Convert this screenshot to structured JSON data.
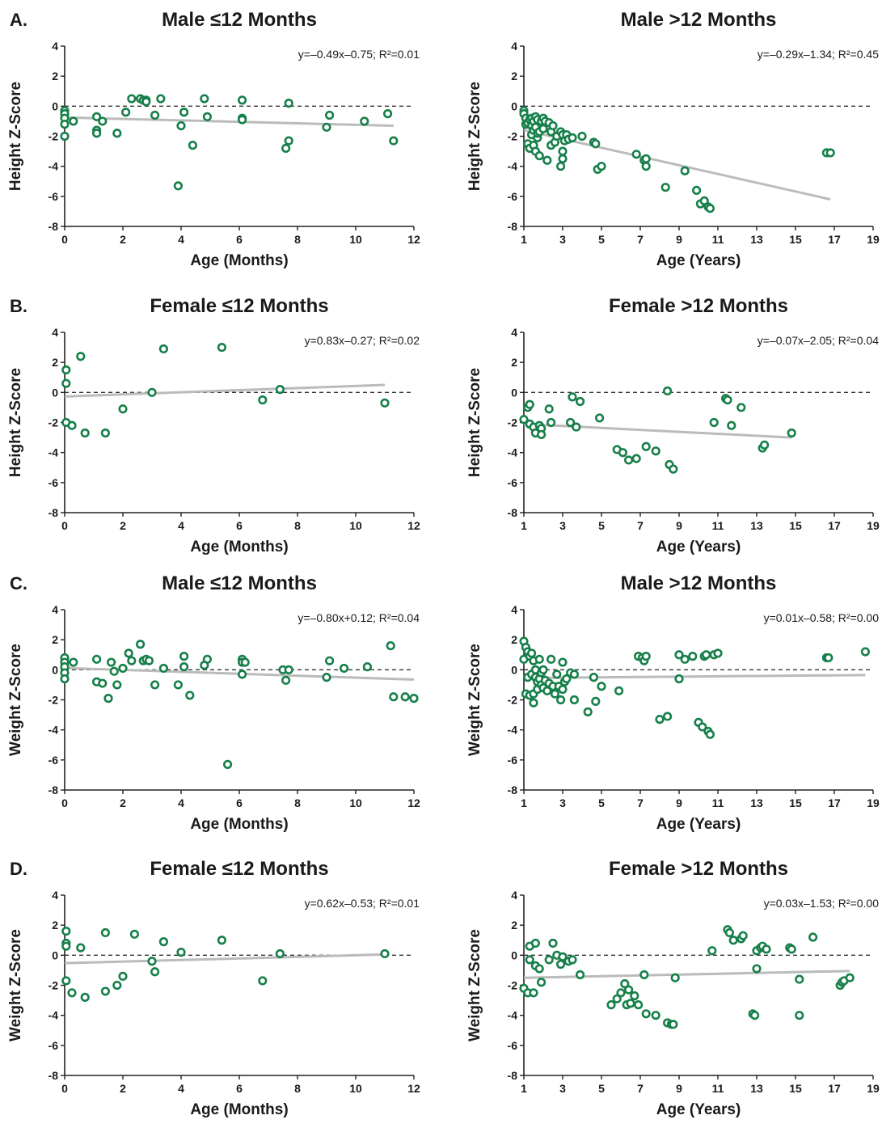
{
  "figure": {
    "rows": [
      {
        "label": "A."
      },
      {
        "label": "B."
      },
      {
        "label": "C."
      },
      {
        "label": "D."
      }
    ]
  },
  "chart_data": [
    {
      "type": "scatter",
      "title": "Male ≤12 Months",
      "equation": "y=–0.49x–0.75; R²=0.01",
      "xlabel": "Age (Months)",
      "ylabel": "Height Z-Score",
      "xlim": [
        0,
        12
      ],
      "ylim": [
        -8,
        4
      ],
      "xticks": [
        0,
        2,
        4,
        6,
        8,
        10,
        12
      ],
      "yticks": [
        4,
        2,
        0,
        -2,
        -4,
        -6,
        -8
      ],
      "reference_line": 0,
      "trend": {
        "x": [
          0,
          11.3
        ],
        "y": [
          -0.75,
          -1.3
        ]
      },
      "x": [
        0,
        0,
        0,
        0,
        0,
        0.3,
        1.1,
        1.1,
        1.1,
        1.3,
        1.8,
        2.1,
        2.3,
        2.6,
        2.7,
        2.8,
        2.8,
        3.1,
        3.3,
        3.9,
        4.0,
        4.1,
        4.4,
        4.8,
        4.9,
        6.1,
        6.1,
        6.1,
        7.6,
        7.7,
        7.7,
        9.0,
        9.1,
        10.3,
        11.1,
        11.3
      ],
      "y": [
        -0.3,
        -0.5,
        -0.8,
        -1.2,
        -2.0,
        -1.0,
        -0.7,
        -1.6,
        -1.8,
        -1.0,
        -1.8,
        -0.4,
        0.5,
        0.5,
        0.4,
        0.4,
        0.3,
        -0.6,
        0.5,
        -5.3,
        -1.3,
        -0.4,
        -2.6,
        0.5,
        -0.7,
        0.4,
        -0.8,
        -0.9,
        -2.8,
        -2.3,
        0.2,
        -1.4,
        -0.6,
        -1.0,
        -0.5,
        -2.3
      ],
      "color": "#17804a",
      "trend_color": "#bbbbbb"
    },
    {
      "type": "scatter",
      "title": "Male >12 Months",
      "equation": "y=–0.29x–1.34; R²=0.45",
      "xlabel": "Age (Years)",
      "ylabel": "Height Z-Score",
      "xlim": [
        1,
        19
      ],
      "ylim": [
        -8,
        4
      ],
      "xticks": [
        1,
        3,
        5,
        7,
        9,
        11,
        13,
        15,
        17,
        19
      ],
      "yticks": [
        4,
        2,
        0,
        -2,
        -4,
        -6,
        -8
      ],
      "reference_line": 0,
      "trend": {
        "x": [
          1,
          16.8
        ],
        "y": [
          -1.6,
          -6.2
        ]
      },
      "x": [
        1.0,
        1.0,
        1.1,
        1.1,
        1.2,
        1.2,
        1.3,
        1.3,
        1.4,
        1.4,
        1.4,
        1.5,
        1.5,
        1.5,
        1.6,
        1.6,
        1.6,
        1.7,
        1.7,
        1.7,
        1.8,
        1.8,
        1.9,
        2.0,
        2.0,
        2.1,
        2.2,
        2.3,
        2.4,
        2.4,
        2.5,
        2.6,
        2.7,
        2.9,
        2.9,
        3.0,
        3.0,
        3.0,
        3.1,
        3.2,
        3.3,
        3.5,
        4.0,
        4.6,
        4.7,
        4.8,
        5.0,
        6.8,
        7.2,
        7.3,
        7.3,
        8.3,
        9.3,
        9.9,
        10.1,
        10.3,
        10.5,
        10.6,
        16.6,
        16.8
      ],
      "y": [
        -0.3,
        -0.5,
        -0.8,
        -1.2,
        -2.5,
        -1.1,
        -0.9,
        -2.8,
        -1.9,
        -1.3,
        -0.8,
        -2.6,
        -1.6,
        -1.0,
        -0.7,
        -1.4,
        -3.0,
        -2.1,
        -0.9,
        -1.8,
        -1.7,
        -3.3,
        -1.0,
        -0.8,
        -1.5,
        -1.0,
        -3.6,
        -1.1,
        -1.7,
        -2.6,
        -1.3,
        -2.4,
        -2.0,
        -4.0,
        -1.7,
        -3.0,
        -1.9,
        -3.5,
        -2.3,
        -1.9,
        -2.2,
        -2.1,
        -2.0,
        -2.4,
        -2.5,
        -4.2,
        -4.0,
        -3.2,
        -3.6,
        -4.0,
        -3.5,
        -5.4,
        -4.3,
        -5.6,
        -6.5,
        -6.3,
        -6.7,
        -6.8,
        -3.1,
        -3.1
      ],
      "color": "#17804a",
      "trend_color": "#bbbbbb"
    },
    {
      "type": "scatter",
      "title": "Female ≤12 Months",
      "equation": "y=0.83x–0.27; R²=0.02",
      "xlabel": "Age (Months)",
      "ylabel": "Height Z-Score",
      "xlim": [
        0,
        12
      ],
      "ylim": [
        -8,
        4
      ],
      "xticks": [
        0,
        2,
        4,
        6,
        8,
        10,
        12
      ],
      "yticks": [
        4,
        2,
        0,
        -2,
        -4,
        -6,
        -8
      ],
      "reference_line": 0,
      "trend": {
        "x": [
          0,
          11
        ],
        "y": [
          -0.27,
          0.5
        ]
      },
      "x": [
        0.05,
        0.05,
        0.05,
        0.25,
        0.55,
        0.7,
        1.4,
        2.0,
        3.0,
        3.4,
        5.4,
        6.8,
        7.4,
        11.0
      ],
      "y": [
        1.5,
        0.6,
        -2.0,
        -2.2,
        2.4,
        -2.7,
        -2.7,
        -1.1,
        0.0,
        2.9,
        3.0,
        -0.5,
        0.2,
        -0.7
      ],
      "color": "#17804a",
      "trend_color": "#bbbbbb"
    },
    {
      "type": "scatter",
      "title": "Female >12 Months",
      "equation": "y=–0.07x–2.05; R²=0.04",
      "xlabel": "Age (Years)",
      "ylabel": "Height Z-Score",
      "xlim": [
        1,
        19
      ],
      "ylim": [
        -8,
        4
      ],
      "xticks": [
        1,
        3,
        5,
        7,
        9,
        11,
        13,
        15,
        17,
        19
      ],
      "yticks": [
        4,
        2,
        0,
        -2,
        -4,
        -6,
        -8
      ],
      "reference_line": 0,
      "trend": {
        "x": [
          1,
          14.8
        ],
        "y": [
          -2.1,
          -3.0
        ]
      },
      "x": [
        1.0,
        1.2,
        1.3,
        1.3,
        1.5,
        1.6,
        1.8,
        1.9,
        1.9,
        2.3,
        2.4,
        3.4,
        3.5,
        3.7,
        3.9,
        4.9,
        5.8,
        6.1,
        6.4,
        6.8,
        7.3,
        7.8,
        8.4,
        8.5,
        8.7,
        10.8,
        11.4,
        11.5,
        11.7,
        12.2,
        13.3,
        13.4,
        14.8
      ],
      "y": [
        -1.8,
        -1.0,
        -0.8,
        -2.1,
        -2.3,
        -2.7,
        -2.2,
        -2.4,
        -2.8,
        -1.1,
        -2.0,
        -2.0,
        -0.3,
        -2.3,
        -0.6,
        -1.7,
        -3.8,
        -4.0,
        -4.5,
        -4.4,
        -3.6,
        -3.9,
        0.1,
        -4.8,
        -5.1,
        -2.0,
        -0.4,
        -0.5,
        -2.2,
        -1.0,
        -3.7,
        -3.5,
        -2.7
      ],
      "color": "#17804a",
      "trend_color": "#bbbbbb"
    },
    {
      "type": "scatter",
      "title": "Male ≤12 Months",
      "equation": "y=–0.80x+0.12; R²=0.04",
      "xlabel": "Age (Months)",
      "ylabel": "Weight Z-Score",
      "xlim": [
        0,
        12
      ],
      "ylim": [
        -8,
        4
      ],
      "xticks": [
        0,
        2,
        4,
        6,
        8,
        10,
        12
      ],
      "yticks": [
        4,
        2,
        0,
        -2,
        -4,
        -6,
        -8
      ],
      "reference_line": 0,
      "trend": {
        "x": [
          0,
          12
        ],
        "y": [
          0.12,
          -0.65
        ]
      },
      "x": [
        0,
        0,
        0,
        0,
        0,
        0.3,
        1.1,
        1.1,
        1.3,
        1.5,
        1.6,
        1.7,
        1.8,
        2.0,
        2.2,
        2.3,
        2.6,
        2.7,
        2.8,
        2.9,
        3.1,
        3.4,
        3.9,
        4.1,
        4.1,
        4.3,
        4.9,
        4.8,
        5.6,
        6.1,
        6.1,
        6.1,
        6.2,
        7.5,
        7.6,
        7.7,
        9.0,
        9.1,
        9.6,
        10.4,
        11.2,
        11.3,
        11.7,
        12.0
      ],
      "y": [
        0.8,
        0.5,
        0.2,
        -0.2,
        -0.6,
        0.5,
        0.7,
        -0.8,
        -0.9,
        -1.9,
        0.5,
        -0.1,
        -1.0,
        0.1,
        1.1,
        0.6,
        1.7,
        0.6,
        0.7,
        0.6,
        -1.0,
        0.1,
        -1.0,
        0.2,
        0.9,
        -1.7,
        0.7,
        0.3,
        -6.3,
        0.7,
        0.5,
        -0.3,
        0.5,
        0.0,
        -0.7,
        0.0,
        -0.5,
        0.6,
        0.1,
        0.2,
        1.6,
        -1.8,
        -1.8,
        -1.9
      ],
      "color": "#17804a",
      "trend_color": "#bbbbbb"
    },
    {
      "type": "scatter",
      "title": "Male >12 Months",
      "equation": "y=0.01x–0.58; R²=0.00",
      "xlabel": "Age (Years)",
      "ylabel": "Weight Z-Score",
      "xlim": [
        1,
        19
      ],
      "ylim": [
        -8,
        4
      ],
      "xticks": [
        1,
        3,
        5,
        7,
        9,
        11,
        13,
        15,
        17,
        19
      ],
      "yticks": [
        4,
        2,
        0,
        -2,
        -4,
        -6,
        -8
      ],
      "reference_line": 0,
      "trend": {
        "x": [
          1,
          18.6
        ],
        "y": [
          -0.55,
          -0.35
        ]
      },
      "x": [
        1.0,
        1.0,
        1.1,
        1.1,
        1.2,
        1.2,
        1.3,
        1.3,
        1.4,
        1.4,
        1.5,
        1.5,
        1.5,
        1.6,
        1.6,
        1.7,
        1.7,
        1.8,
        1.8,
        1.9,
        1.9,
        2.0,
        2.0,
        2.1,
        2.2,
        2.3,
        2.4,
        2.5,
        2.6,
        2.7,
        2.8,
        2.9,
        3.0,
        3.0,
        3.1,
        3.2,
        3.4,
        3.6,
        3.6,
        4.3,
        4.6,
        4.7,
        5.0,
        5.9,
        6.9,
        7.1,
        7.2,
        7.3,
        8.0,
        8.4,
        9.0,
        9.0,
        9.3,
        9.7,
        10.0,
        10.2,
        10.3,
        10.4,
        10.5,
        10.6,
        10.8,
        11.0,
        16.6,
        16.7,
        18.6
      ],
      "y": [
        1.9,
        0.7,
        1.5,
        -1.6,
        1.2,
        -0.5,
        0.9,
        -1.7,
        1.1,
        -0.3,
        0.6,
        -2.2,
        -1.6,
        -0.5,
        0.0,
        -0.8,
        -1.3,
        0.7,
        -0.6,
        -0.2,
        -1.0,
        0.0,
        -1.2,
        -0.7,
        -1.4,
        -0.9,
        0.7,
        -1.1,
        -1.6,
        -0.3,
        -1.1,
        -2.0,
        0.5,
        -1.3,
        -0.8,
        -0.6,
        -0.2,
        -2.0,
        -0.3,
        -2.8,
        -0.5,
        -2.1,
        -1.1,
        -1.4,
        0.9,
        0.8,
        0.6,
        0.9,
        -3.3,
        -3.1,
        1.0,
        -0.6,
        0.7,
        0.9,
        -3.5,
        -3.8,
        0.9,
        1.0,
        -4.1,
        -4.3,
        1.0,
        1.1,
        0.8,
        0.8,
        1.2
      ],
      "color": "#17804a",
      "trend_color": "#bbbbbb"
    },
    {
      "type": "scatter",
      "title": "Female ≤12 Months",
      "equation": "y=0.62x–0.53; R²=0.01",
      "xlabel": "Age (Months)",
      "ylabel": "Weight Z-Score",
      "xlim": [
        0,
        12
      ],
      "ylim": [
        -8,
        4
      ],
      "xticks": [
        0,
        2,
        4,
        6,
        8,
        10,
        12
      ],
      "yticks": [
        4,
        2,
        0,
        -2,
        -4,
        -6,
        -8
      ],
      "reference_line": 0,
      "trend": {
        "x": [
          0,
          11
        ],
        "y": [
          -0.53,
          0.05
        ]
      },
      "x": [
        0.05,
        0.05,
        0.05,
        0.05,
        0.25,
        0.55,
        0.7,
        1.4,
        1.4,
        1.8,
        2.0,
        2.4,
        3.0,
        3.1,
        3.4,
        4.0,
        5.4,
        6.8,
        7.4,
        11.0
      ],
      "y": [
        1.6,
        0.8,
        0.6,
        -1.7,
        -2.5,
        0.5,
        -2.8,
        1.5,
        -2.4,
        -2.0,
        -1.4,
        1.4,
        -0.4,
        -1.1,
        0.9,
        0.2,
        1.0,
        -1.7,
        0.1,
        0.1
      ],
      "color": "#17804a",
      "trend_color": "#bbbbbb"
    },
    {
      "type": "scatter",
      "title": "Female >12 Months",
      "equation": "y=0.03x–1.53; R²=0.00",
      "xlabel": "Age (Years)",
      "ylabel": "Weight Z-Score",
      "xlim": [
        1,
        19
      ],
      "ylim": [
        -8,
        4
      ],
      "xticks": [
        1,
        3,
        5,
        7,
        9,
        11,
        13,
        15,
        17,
        19
      ],
      "yticks": [
        4,
        2,
        0,
        -2,
        -4,
        -6,
        -8
      ],
      "reference_line": 0,
      "trend": {
        "x": [
          1,
          17.8
        ],
        "y": [
          -1.5,
          -1.05
        ]
      },
      "x": [
        1.0,
        1.2,
        1.3,
        1.3,
        1.5,
        1.6,
        1.6,
        1.8,
        1.9,
        2.3,
        2.5,
        2.7,
        2.9,
        3.0,
        3.3,
        3.5,
        3.9,
        5.5,
        5.8,
        6.0,
        6.2,
        6.3,
        6.4,
        6.5,
        6.7,
        6.9,
        7.2,
        7.3,
        7.8,
        8.4,
        8.6,
        8.7,
        8.8,
        10.7,
        11.5,
        11.6,
        11.8,
        12.2,
        12.3,
        12.8,
        12.9,
        13.0,
        13.0,
        13.2,
        13.3,
        13.5,
        14.7,
        14.8,
        15.2,
        15.2,
        15.9,
        17.3,
        17.4,
        17.5,
        17.8
      ],
      "y": [
        -2.2,
        -2.5,
        0.6,
        -0.3,
        -2.5,
        0.8,
        -0.7,
        -0.9,
        -1.8,
        -0.3,
        0.8,
        0.0,
        -0.6,
        -0.1,
        -0.4,
        -0.3,
        -1.3,
        -3.3,
        -2.9,
        -2.5,
        -1.9,
        -3.3,
        -2.3,
        -3.2,
        -2.7,
        -3.3,
        -1.3,
        -3.9,
        -4.0,
        -4.5,
        -4.6,
        -4.6,
        -1.5,
        0.3,
        1.7,
        1.5,
        1.0,
        1.1,
        1.3,
        -3.9,
        -4.0,
        -0.9,
        0.3,
        0.5,
        0.6,
        0.4,
        0.5,
        0.4,
        -1.6,
        -4.0,
        1.2,
        -2.0,
        -1.8,
        -1.7,
        -1.5
      ],
      "color": "#17804a",
      "trend_color": "#bbbbbb"
    }
  ]
}
